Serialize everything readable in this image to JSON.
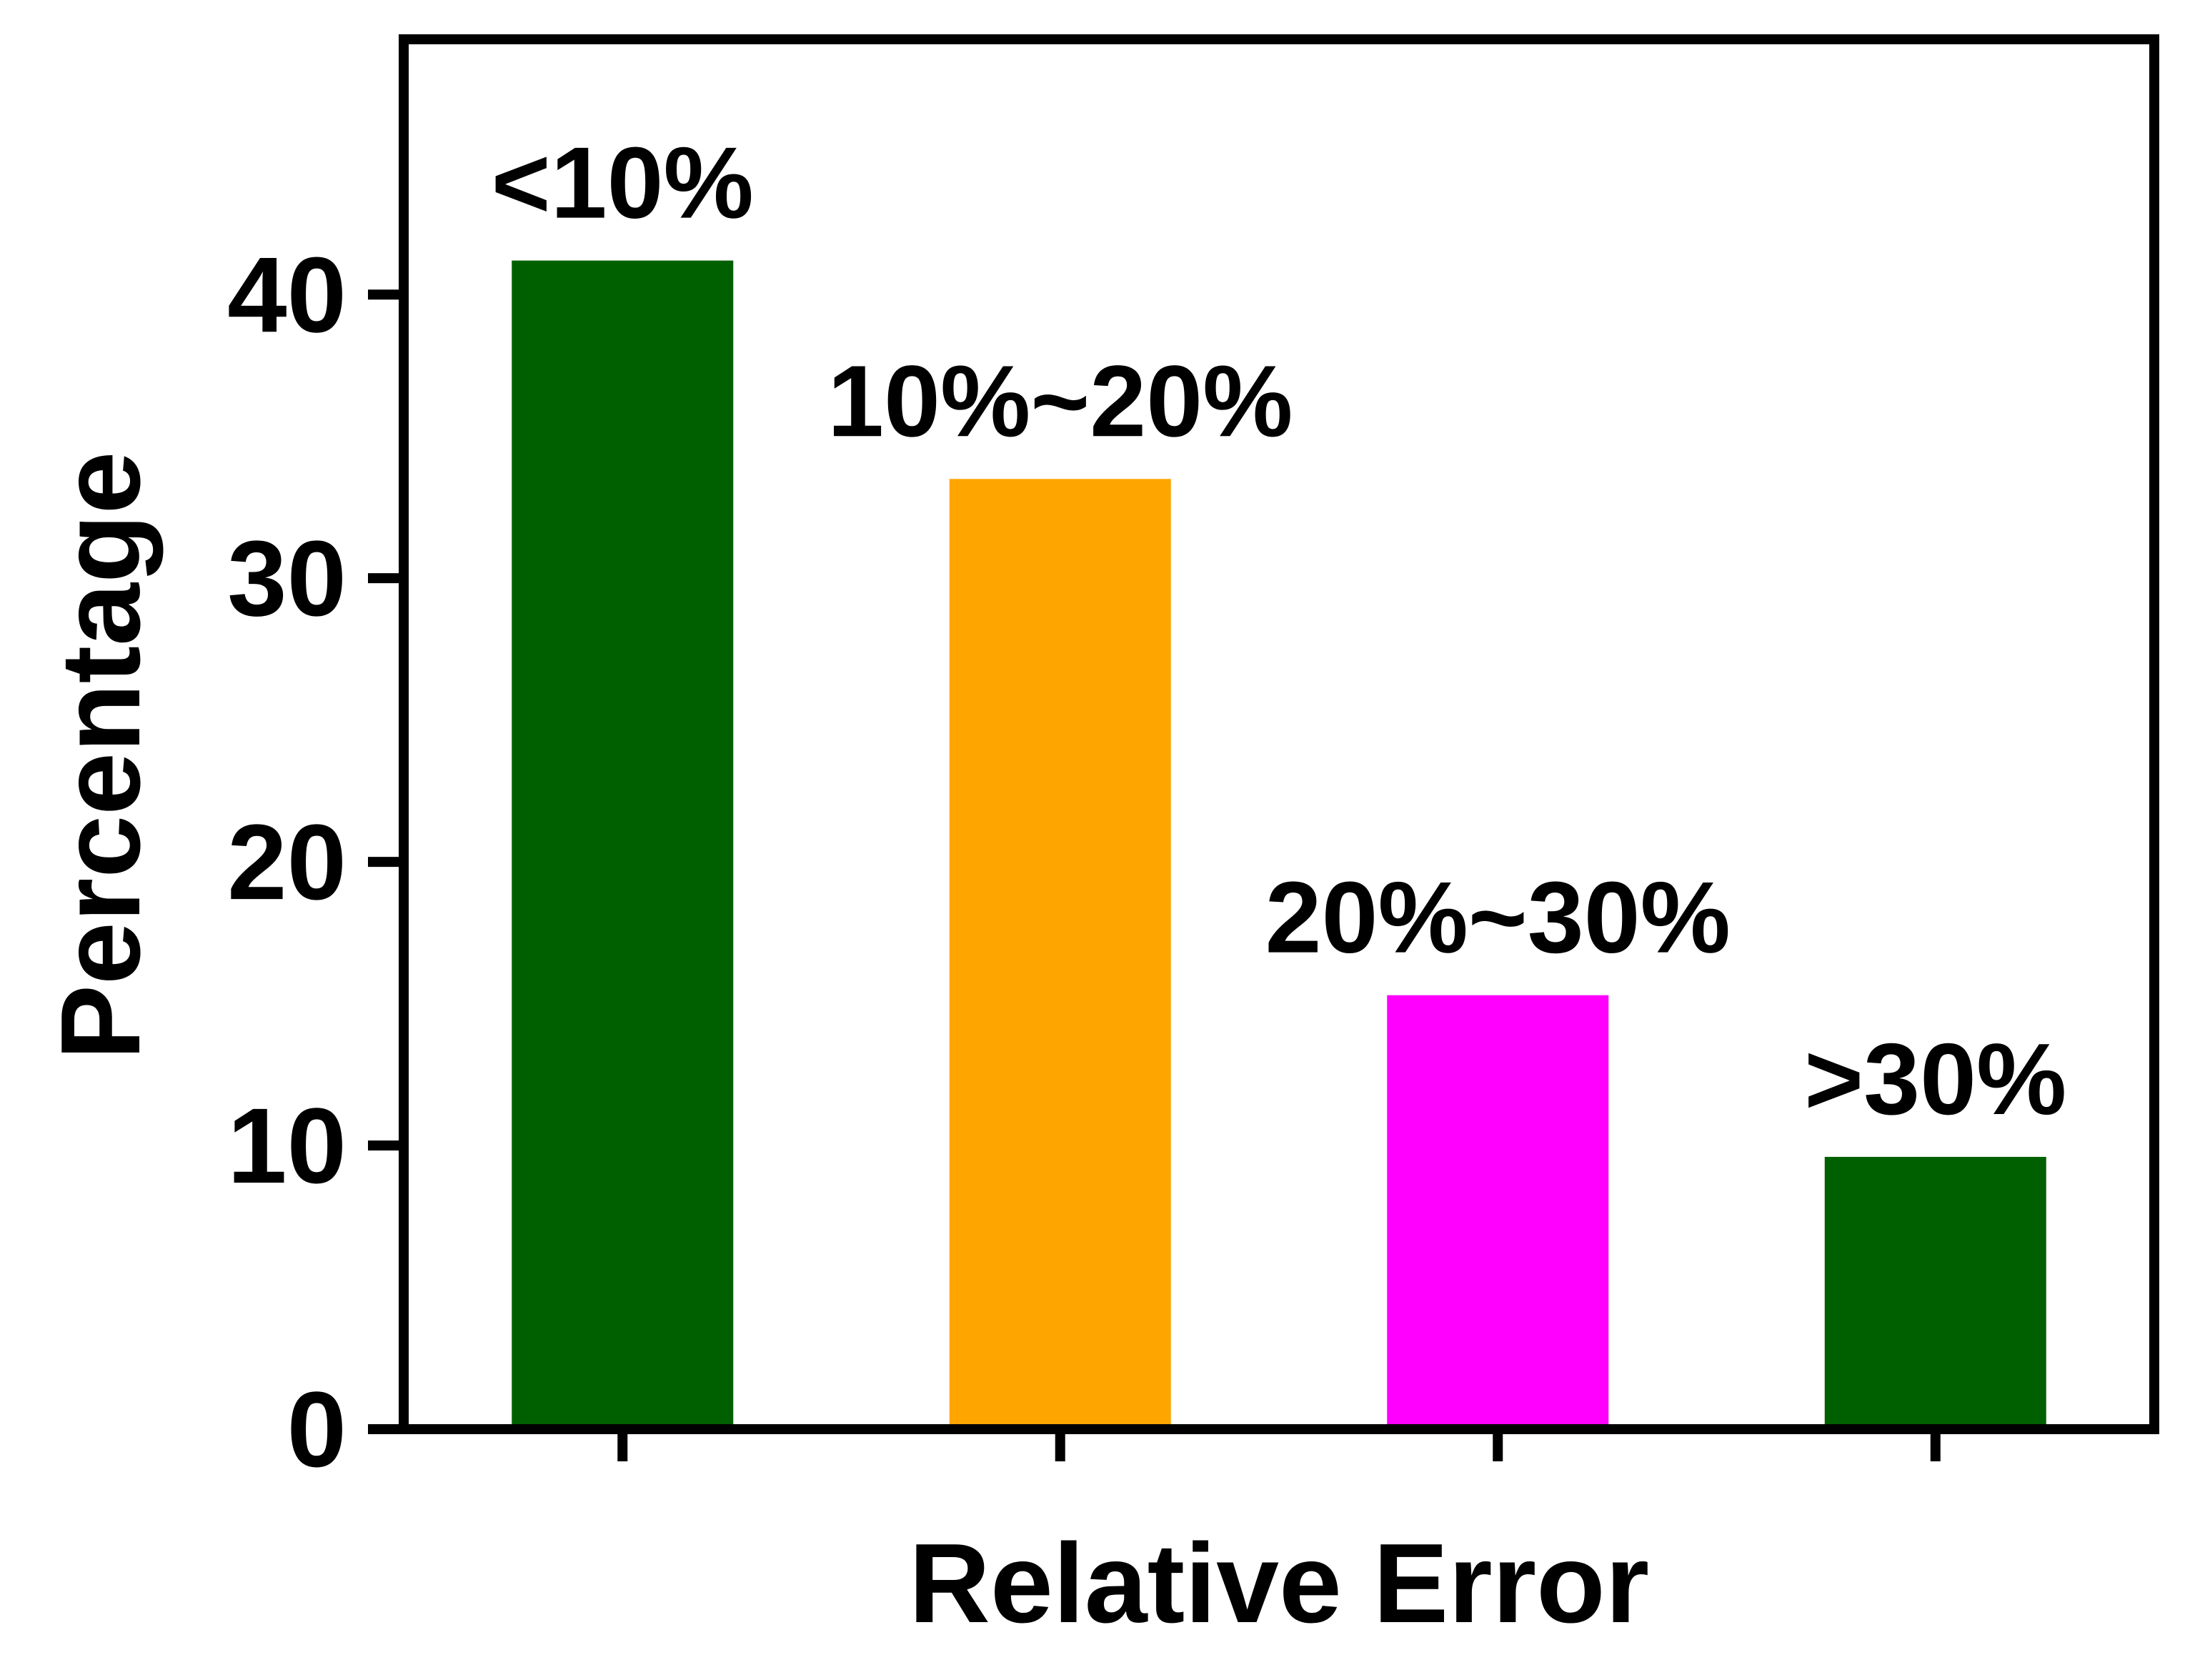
{
  "chart_data": {
    "type": "bar",
    "xlabel": "Relative Error",
    "ylabel": "Percentage",
    "categories": [
      "<10%",
      "10%~20%",
      "20%~30%",
      ">30%"
    ],
    "values": [
      41.2,
      33.5,
      15.3,
      9.6
    ],
    "colors": [
      "#006000",
      "#FFA500",
      "#FF00FF",
      "#006000"
    ],
    "ylim": [
      0,
      49
    ],
    "yticks": [
      0,
      10,
      20,
      30,
      40
    ],
    "grid": false,
    "legend": "none"
  }
}
